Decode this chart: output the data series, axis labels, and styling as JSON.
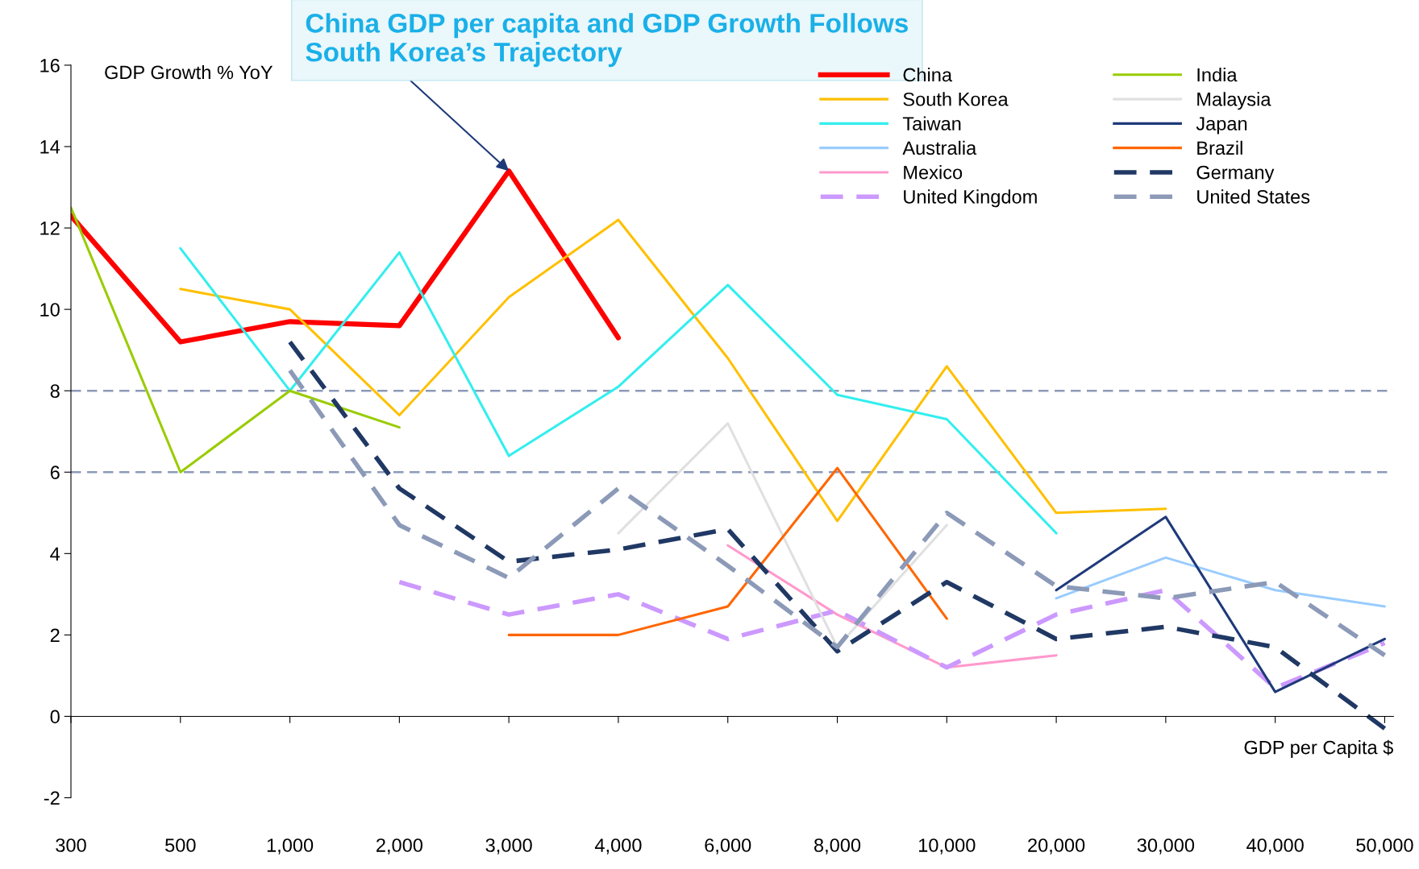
{
  "chart_data": {
    "type": "line",
    "categories": [
      "300",
      "500",
      "1,000",
      "2,000",
      "3,000",
      "4,000",
      "6,000",
      "8,000",
      "10,000",
      "20,000",
      "30,000",
      "40,000",
      "50,000"
    ],
    "ylabel": "GDP Growth % YoY",
    "xlabel": "GDP per Capita $",
    "ylim": [
      -2,
      16
    ],
    "yticks": [
      -2,
      0,
      2,
      4,
      6,
      8,
      10,
      12,
      14,
      16
    ],
    "grid": false,
    "legend": "top right",
    "marker": "none",
    "annotations": [
      {
        "text": "China GDP per capita and GDP Growth Follows South Korea’s Trajectory",
        "x": "3,000",
        "y": 13.4
      }
    ],
    "ref_lines": [
      {
        "axis": "y",
        "value": 8,
        "color": "#8c9ab8",
        "line_style": "dashed"
      },
      {
        "axis": "y",
        "value": 6,
        "color": "#8c9ab8",
        "line_style": "dashed"
      }
    ],
    "series": [
      {
        "name": "China",
        "color": "#ff0000",
        "line_style": "solid",
        "values": [
          12.3,
          9.2,
          9.7,
          9.6,
          13.4,
          9.3,
          null,
          null,
          null,
          null,
          null,
          null,
          null
        ]
      },
      {
        "name": "South Korea",
        "color": "#ffc000",
        "line_style": "solid",
        "values": [
          null,
          10.5,
          10.0,
          7.4,
          10.3,
          12.2,
          8.8,
          4.8,
          8.6,
          5.0,
          5.1,
          null,
          null
        ]
      },
      {
        "name": "Taiwan",
        "color": "#33eeee",
        "line_style": "solid",
        "values": [
          null,
          11.5,
          8.0,
          11.4,
          6.4,
          8.1,
          10.6,
          7.9,
          7.3,
          4.5,
          null,
          null,
          null
        ]
      },
      {
        "name": "Australia",
        "color": "#99ccff",
        "line_style": "solid",
        "values": [
          null,
          null,
          null,
          null,
          null,
          null,
          null,
          null,
          null,
          2.9,
          3.9,
          3.1,
          2.7
        ]
      },
      {
        "name": "Mexico",
        "color": "#ff99cc",
        "line_style": "solid",
        "values": [
          null,
          null,
          null,
          null,
          null,
          null,
          4.2,
          2.5,
          1.2,
          1.5,
          null,
          null,
          null
        ]
      },
      {
        "name": "United Kingdom",
        "color": "#cc99ff",
        "line_style": "dashed",
        "values": [
          null,
          null,
          null,
          3.3,
          2.5,
          3.0,
          1.9,
          2.6,
          1.2,
          2.5,
          3.1,
          0.7,
          1.8
        ]
      },
      {
        "name": "India",
        "color": "#99cc00",
        "line_style": "solid",
        "values": [
          12.5,
          6.0,
          8.0,
          7.1,
          null,
          null,
          null,
          null,
          null,
          null,
          null,
          null,
          null
        ]
      },
      {
        "name": "Malaysia",
        "color": "#e0e0e0",
        "line_style": "solid",
        "values": [
          null,
          null,
          null,
          null,
          null,
          4.5,
          7.2,
          1.7,
          4.7,
          null,
          null,
          null,
          null
        ]
      },
      {
        "name": "Japan",
        "color": "#1f3a7a",
        "line_style": "solid",
        "values": [
          null,
          null,
          null,
          null,
          null,
          null,
          null,
          null,
          null,
          3.1,
          4.9,
          0.6,
          1.9
        ]
      },
      {
        "name": "Brazil",
        "color": "#ff6600",
        "line_style": "solid",
        "values": [
          null,
          null,
          null,
          null,
          2.0,
          2.0,
          2.7,
          6.1,
          2.4,
          null,
          null,
          null,
          null
        ]
      },
      {
        "name": "Germany",
        "color": "#203864",
        "line_style": "dashed",
        "values": [
          null,
          null,
          9.2,
          5.6,
          3.8,
          4.1,
          4.6,
          1.6,
          3.3,
          1.9,
          2.2,
          1.7,
          -0.3
        ]
      },
      {
        "name": "United States",
        "color": "#8c9ab8",
        "line_style": "dashed",
        "values": [
          null,
          null,
          8.5,
          4.7,
          3.4,
          5.6,
          3.7,
          1.7,
          5.0,
          3.2,
          2.9,
          3.3,
          1.5
        ]
      }
    ]
  }
}
